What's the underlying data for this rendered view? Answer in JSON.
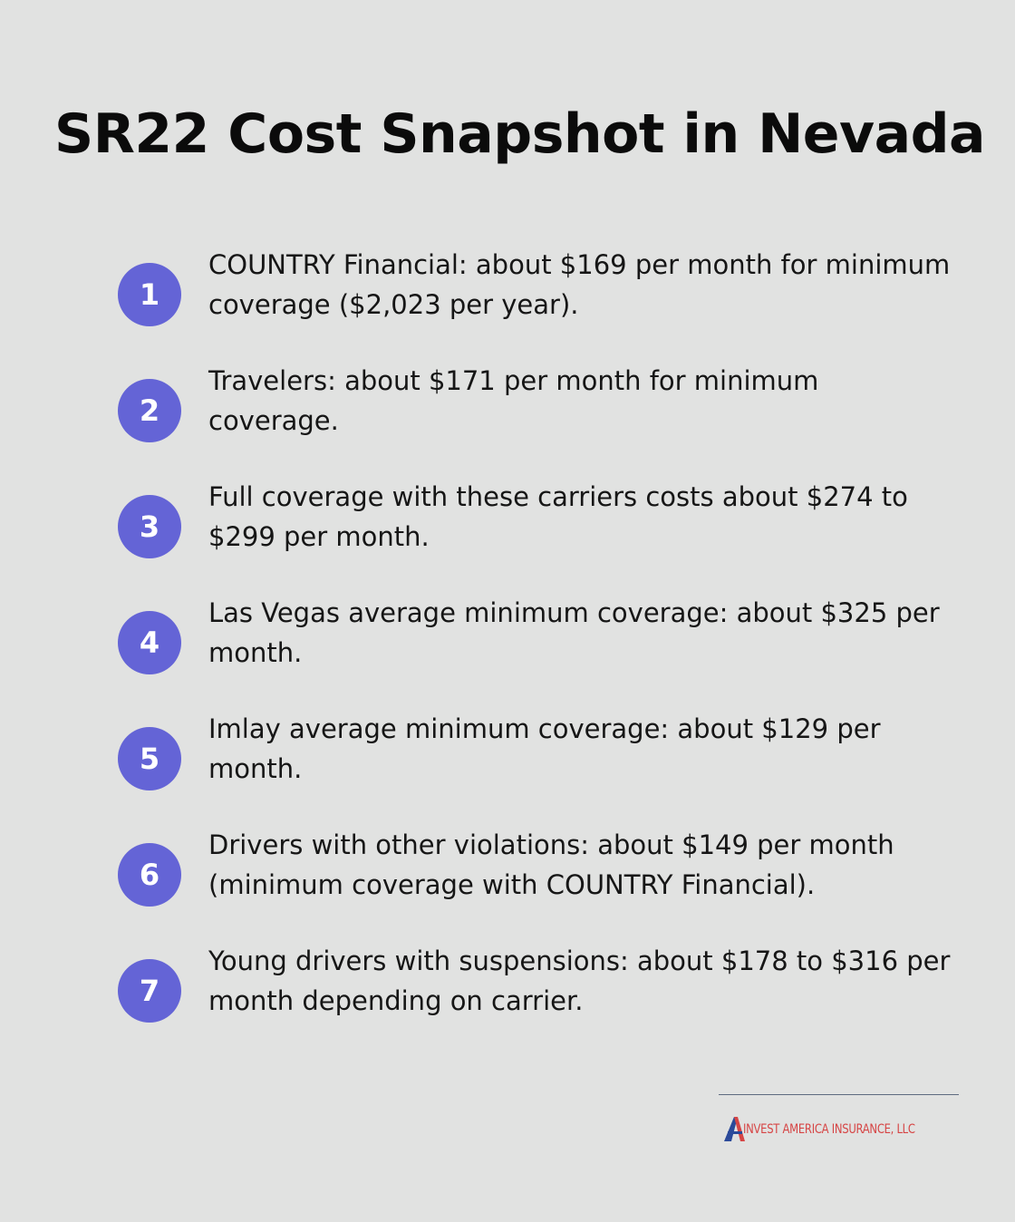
{
  "title": "SR22 Cost Snapshot in Nevada",
  "items": [
    {
      "number": "1",
      "text": "COUNTRY Financial: about $169 per month for minimum coverage ($2,023 per year)."
    },
    {
      "number": "2",
      "text": "Travelers: about $171 per month for minimum coverage."
    },
    {
      "number": "3",
      "text": "Full coverage with these carriers costs about $274 to $299 per month."
    },
    {
      "number": "4",
      "text": "Las Vegas average minimum coverage: about $325 per month."
    },
    {
      "number": "5",
      "text": "Imlay average minimum coverage: about $129 per month."
    },
    {
      "number": "6",
      "text": "Drivers with other violations: about $149 per month (minimum coverage with COUNTRY Financial)."
    },
    {
      "number": "7",
      "text": "Young drivers with suspensions: about $178 to $316 per month depending on carrier."
    }
  ],
  "footer": {
    "logo_text": "INVEST AMERICA INSURANCE, LLC"
  },
  "colors": {
    "background": "#e1e2e1",
    "badge": "#6464d6",
    "logo_red": "#d64545",
    "logo_blue": "#2b4a9a"
  }
}
